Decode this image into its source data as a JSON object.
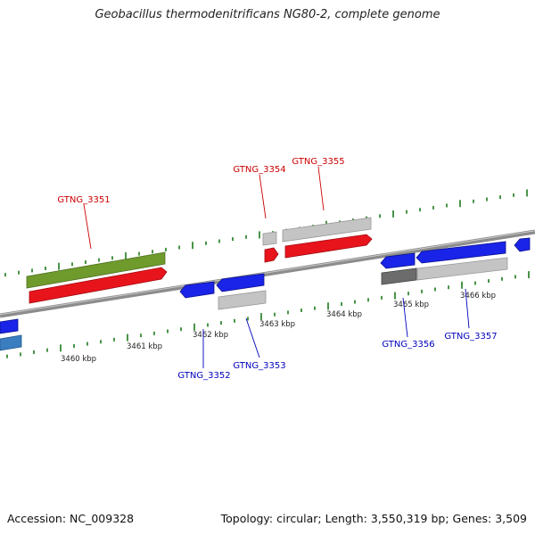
{
  "title": "Geobacillus thermodenitrificans NG80-2, complete genome",
  "footer": {
    "accession": "Accession: NC_009328",
    "summary": "Topology: circular; Length: 3,550,319 bp; Genes: 3,509"
  },
  "colors": {
    "forward_gene": "#e8141c",
    "reverse_gene": "#1a24e8",
    "cds_gray": "#c4c4c4",
    "dark_gray": "#6c6c6c",
    "olive": "#6f9a2c",
    "steel_blue": "#3a7ec0",
    "backbone": "#8c8c8c",
    "ticks": "#1d7a1d",
    "label_top": "#cc0000",
    "label_bottom": "#0000bb"
  },
  "kbp_labels": [
    {
      "text": "3460 kbp"
    },
    {
      "text": "3461 kbp"
    },
    {
      "text": "3462 kbp"
    },
    {
      "text": "3463 kbp"
    },
    {
      "text": "3464 kbp"
    },
    {
      "text": "3465 kbp"
    },
    {
      "text": "3466 kbp"
    }
  ],
  "gene_labels": [
    {
      "name": "GTNG_3351",
      "strand": "top"
    },
    {
      "name": "GTNG_3354",
      "strand": "top"
    },
    {
      "name": "GTNG_3355",
      "strand": "top"
    },
    {
      "name": "GTNG_3352",
      "strand": "bottom"
    },
    {
      "name": "GTNG_3353",
      "strand": "bottom"
    },
    {
      "name": "GTNG_3356",
      "strand": "bottom"
    },
    {
      "name": "GTNG_3357",
      "strand": "bottom"
    }
  ]
}
